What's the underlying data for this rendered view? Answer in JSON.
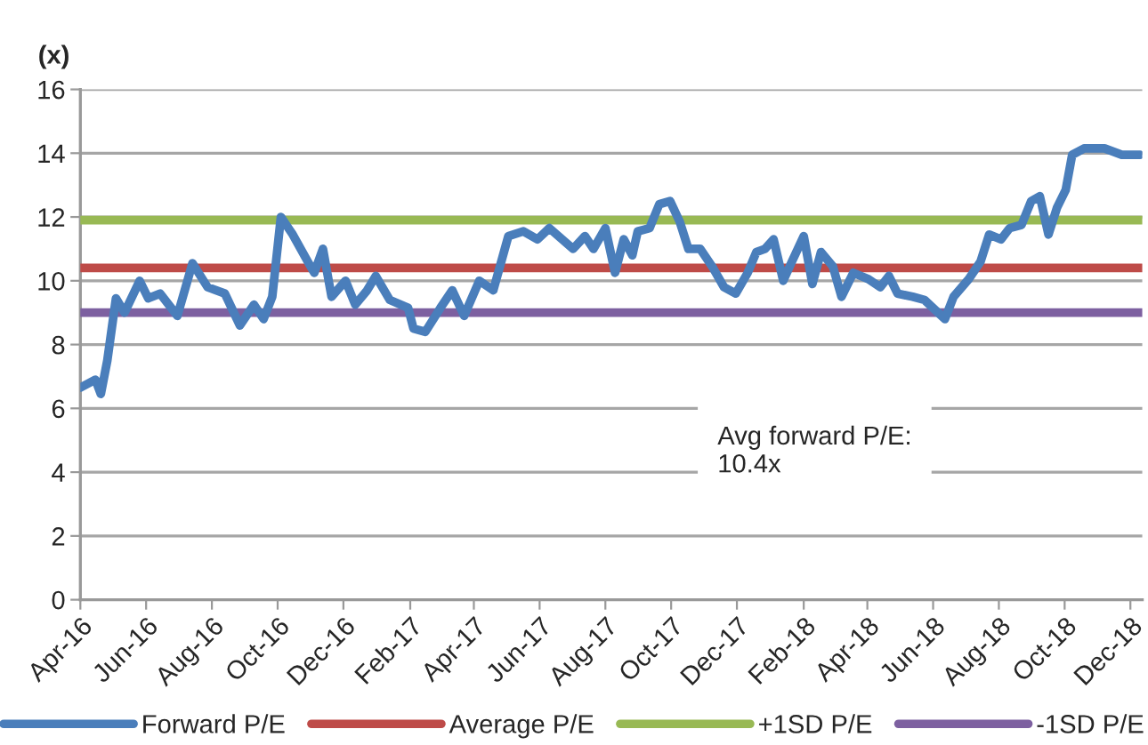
{
  "chart_data": {
    "type": "line",
    "ylabel": "(x)",
    "x": [
      "2016-04-01",
      "2016-04-15",
      "2016-04-20",
      "2016-04-26",
      "2016-05-04",
      "2016-05-12",
      "2016-05-26",
      "2016-06-03",
      "2016-06-14",
      "2016-06-30",
      "2016-07-14",
      "2016-07-28",
      "2016-08-13",
      "2016-08-27",
      "2016-09-09",
      "2016-09-18",
      "2016-09-26",
      "2016-10-04",
      "2016-10-15",
      "2016-10-29",
      "2016-11-04",
      "2016-11-12",
      "2016-11-20",
      "2016-12-03",
      "2016-12-12",
      "2016-12-23",
      "2016-12-31",
      "2017-01-13",
      "2017-01-30",
      "2017-02-04",
      "2017-02-15",
      "2017-03-01",
      "2017-03-12",
      "2017-03-23",
      "2017-04-06",
      "2017-04-19",
      "2017-05-03",
      "2017-05-17",
      "2017-05-30",
      "2017-06-10",
      "2017-07-02",
      "2017-07-13",
      "2017-07-21",
      "2017-08-01",
      "2017-08-10",
      "2017-08-18",
      "2017-08-26",
      "2017-08-31",
      "2017-09-11",
      "2017-09-20",
      "2017-09-30",
      "2017-10-09",
      "2017-10-17",
      "2017-10-28",
      "2017-11-08",
      "2017-11-19",
      "2017-11-30",
      "2017-12-11",
      "2017-12-19",
      "2017-12-27",
      "2018-01-04",
      "2018-01-13",
      "2018-01-21",
      "2018-02-01",
      "2018-02-09",
      "2018-02-17",
      "2018-02-28",
      "2018-03-08",
      "2018-03-19",
      "2018-04-02",
      "2018-04-13",
      "2018-04-21",
      "2018-04-29",
      "2018-05-13",
      "2018-05-24",
      "2018-06-04",
      "2018-06-12",
      "2018-06-20",
      "2018-07-04",
      "2018-07-15",
      "2018-07-23",
      "2018-08-03",
      "2018-08-11",
      "2018-08-22",
      "2018-08-31",
      "2018-09-08",
      "2018-09-16",
      "2018-09-24",
      "2018-10-02",
      "2018-10-08",
      "2018-10-19",
      "2018-11-07",
      "2018-11-23",
      "2018-12-10"
    ],
    "series": [
      {
        "name": "Forward P/E",
        "color": "#4a7ebb",
        "values": [
          6.65,
          6.9,
          6.45,
          7.5,
          9.45,
          9.0,
          10.0,
          9.45,
          9.6,
          8.9,
          10.55,
          9.8,
          9.6,
          8.6,
          9.25,
          8.8,
          9.5,
          12.0,
          11.45,
          10.6,
          10.25,
          11.0,
          9.5,
          10.0,
          9.25,
          9.7,
          10.15,
          9.4,
          9.15,
          8.5,
          8.4,
          9.15,
          9.7,
          8.9,
          10.0,
          9.7,
          11.4,
          11.55,
          11.3,
          11.65,
          11.0,
          11.4,
          11.0,
          11.65,
          10.25,
          11.3,
          10.8,
          11.55,
          11.65,
          12.4,
          12.5,
          11.85,
          11.0,
          11.0,
          10.45,
          9.8,
          9.6,
          10.25,
          10.9,
          11.0,
          11.3,
          10.0,
          10.6,
          11.4,
          9.9,
          10.9,
          10.45,
          9.5,
          10.25,
          10.05,
          9.8,
          10.15,
          9.6,
          9.5,
          9.4,
          9.05,
          8.8,
          9.5,
          10.05,
          10.6,
          11.45,
          11.3,
          11.65,
          11.75,
          12.5,
          12.65,
          11.45,
          12.3,
          12.85,
          13.95,
          14.15,
          14.15,
          13.95,
          13.95
        ]
      }
    ],
    "ref_lines": [
      {
        "axis": "y",
        "value": 10.4,
        "label": "Average P/E",
        "color": "#be4b48"
      },
      {
        "axis": "y",
        "value": 11.9,
        "label": "+1SD P/E",
        "color": "#98b954"
      },
      {
        "axis": "y",
        "value": 9.0,
        "label": "-1SD P/E",
        "color": "#7d60a0"
      }
    ],
    "annotations": [
      "Avg forward P/E:\n10.4x"
    ],
    "xlim": [
      "2016-04-01",
      "2018-12-12"
    ],
    "xticks": [
      {
        "value": "2016-04-01",
        "label": "Apr-16"
      },
      {
        "value": "2016-06-01",
        "label": "Jun-16"
      },
      {
        "value": "2016-08-01",
        "label": "Aug-16"
      },
      {
        "value": "2016-10-01",
        "label": "Oct-16"
      },
      {
        "value": "2016-12-01",
        "label": "Dec-16"
      },
      {
        "value": "2017-02-01",
        "label": "Feb-17"
      },
      {
        "value": "2017-04-01",
        "label": "Apr-17"
      },
      {
        "value": "2017-06-01",
        "label": "Jun-17"
      },
      {
        "value": "2017-08-01",
        "label": "Aug-17"
      },
      {
        "value": "2017-10-01",
        "label": "Oct-17"
      },
      {
        "value": "2017-12-01",
        "label": "Dec-17"
      },
      {
        "value": "2018-02-01",
        "label": "Feb-18"
      },
      {
        "value": "2018-04-01",
        "label": "Apr-18"
      },
      {
        "value": "2018-06-01",
        "label": "Jun-18"
      },
      {
        "value": "2018-08-01",
        "label": "Aug-18"
      },
      {
        "value": "2018-10-01",
        "label": "Oct-18"
      },
      {
        "value": "2018-12-01",
        "label": "Dec-18"
      }
    ],
    "ylim": [
      0,
      16
    ],
    "yticks": [
      0,
      2,
      4,
      6,
      8,
      10,
      12,
      14,
      16
    ],
    "grid": "y",
    "legend": "bottom",
    "line_style": "solid",
    "marker": "none"
  }
}
